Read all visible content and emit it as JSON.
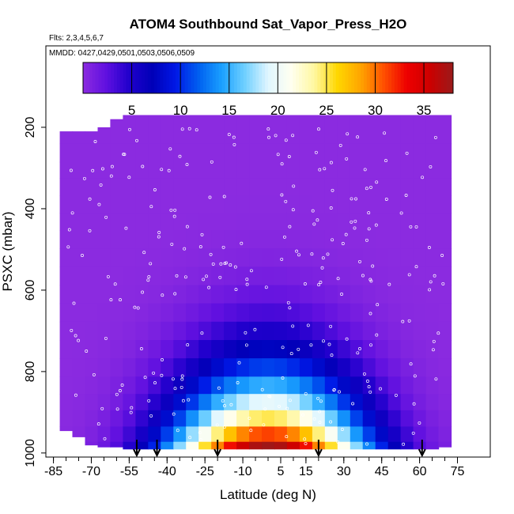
{
  "chart_data": {
    "type": "heatmap",
    "title": "ATOM4 Southbound Sat_Vapor_Press_H2O",
    "subtitle_flights": "Flts: 2,3,4,5,6,7",
    "subtitle_dates": "MMDD: 0427,0429,0501,0503,0506,0509",
    "xlabel": "Latitude (deg N)",
    "ylabel": "PSXC (mbar)",
    "xlim": [
      -88,
      88
    ],
    "ylim": [
      1010,
      0
    ],
    "x_ticks": [
      -85,
      -70,
      -55,
      -40,
      -25,
      -10,
      5,
      15,
      30,
      45,
      60,
      75
    ],
    "x_minor_step": 5,
    "y_ticks": [
      200,
      400,
      600,
      800,
      1000
    ],
    "colorbar": {
      "range": [
        0,
        38
      ],
      "ticks": [
        5,
        10,
        15,
        20,
        25,
        30,
        35
      ],
      "colors": [
        "#8b2be0",
        "#6010e0",
        "#2000cc",
        "#0000b8",
        "#0018e6",
        "#0060f0",
        "#1aa0ff",
        "#70d0ff",
        "#e0f6ff",
        "#fffff0",
        "#fff7a0",
        "#ffd700",
        "#ffa500",
        "#ff5000",
        "#ee0000",
        "#cc0000",
        "#9a1a1a"
      ]
    },
    "lat_centers": [
      -80,
      -75,
      -70,
      -65,
      -60,
      -55,
      -50,
      -45,
      -40,
      -35,
      -30,
      -25,
      -20,
      -15,
      -10,
      -5,
      0,
      5,
      10,
      15,
      20,
      25,
      30,
      35,
      40,
      45,
      50,
      55,
      60,
      65,
      70
    ],
    "pressure_levels": [
      215,
      265,
      305,
      345,
      390,
      430,
      475,
      520,
      565,
      610,
      655,
      700,
      745,
      790,
      835,
      875,
      915,
      955,
      990
    ],
    "bottom_pressure": [
      945,
      960,
      980,
      985,
      985,
      990,
      990,
      990,
      990,
      990,
      990,
      990,
      990,
      990,
      990,
      990,
      990,
      990,
      990,
      990,
      990,
      990,
      990,
      990,
      990,
      990,
      990,
      990,
      990,
      990,
      985
    ],
    "top_pressure": [
      210,
      210,
      210,
      200,
      180,
      170,
      170,
      170,
      170,
      170,
      170,
      170,
      170,
      170,
      170,
      170,
      170,
      170,
      170,
      170,
      170,
      170,
      170,
      170,
      170,
      170,
      170,
      170,
      170,
      170,
      170
    ],
    "profile_latitudes": [
      -52,
      -44,
      -20,
      20,
      61
    ],
    "sample_density": 2
  }
}
